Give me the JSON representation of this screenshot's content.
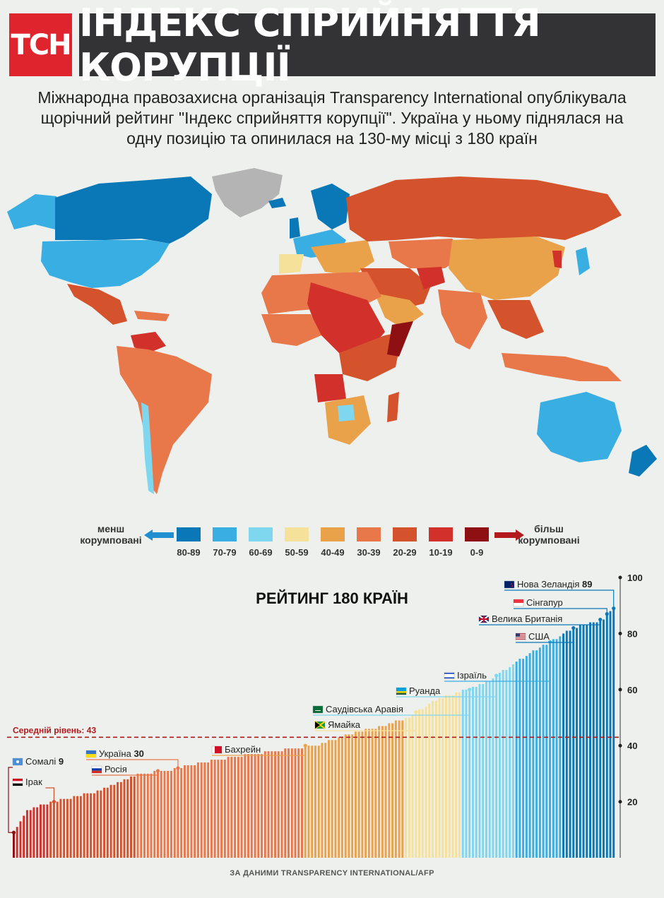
{
  "header": {
    "logo_text": "ТСН",
    "title": "ІНДЕКС СПРИЙНЯТТЯ КОРУПЦІЇ"
  },
  "subtitle_lines": [
    "Міжнародна правозахисна організація Transparency International опублікувала",
    "щорічний рейтинг  \"Індекс сприйняття корупції\". Україна у ньому піднялася на",
    "одну позицію та опинилася на 130-му місці з 180 країн"
  ],
  "legend": {
    "left_label": [
      "менш",
      "корумповані"
    ],
    "right_label": [
      "більш",
      "корумповані"
    ],
    "ranges": [
      {
        "label": "80-89",
        "color": "#0a78b6"
      },
      {
        "label": "70-79",
        "color": "#39aee2"
      },
      {
        "label": "60-69",
        "color": "#7fd6ef"
      },
      {
        "label": "50-59",
        "color": "#f6e19a"
      },
      {
        "label": "40-49",
        "color": "#eaa24a"
      },
      {
        "label": "30-39",
        "color": "#e8774a"
      },
      {
        "label": "20-29",
        "color": "#d4532d"
      },
      {
        "label": "10-19",
        "color": "#d2302a"
      },
      {
        "label": "0-9",
        "color": "#8e1013"
      }
    ]
  },
  "chart_data": {
    "type": "bar",
    "title": "РЕЙТИНГ 180 КРАЇН",
    "ylim": [
      0,
      100
    ],
    "yticks": [
      20,
      40,
      60,
      80,
      100
    ],
    "n_countries": 180,
    "average": {
      "label": "Середній рівень: 43",
      "value": 43
    },
    "breakpoints": [
      {
        "start": 0,
        "value": 9
      },
      {
        "start": 4,
        "value": 17
      },
      {
        "start": 12,
        "value": 20
      },
      {
        "start": 26,
        "value": 24
      },
      {
        "start": 33,
        "value": 28
      },
      {
        "start": 38,
        "value": 30
      },
      {
        "start": 46,
        "value": 31
      },
      {
        "start": 56,
        "value": 34
      },
      {
        "start": 66,
        "value": 36
      },
      {
        "start": 77,
        "value": 38
      },
      {
        "start": 90,
        "value": 40
      },
      {
        "start": 100,
        "value": 44
      },
      {
        "start": 110,
        "value": 47
      },
      {
        "start": 118,
        "value": 50
      },
      {
        "start": 125,
        "value": 56
      },
      {
        "start": 135,
        "value": 60
      },
      {
        "start": 142,
        "value": 63
      },
      {
        "start": 150,
        "value": 70
      },
      {
        "start": 160,
        "value": 77
      },
      {
        "start": 167,
        "value": 82
      },
      {
        "start": 176,
        "value": 85
      },
      {
        "start": 178,
        "value": 88
      },
      {
        "start": 179,
        "value": 89
      }
    ],
    "color_bands": [
      {
        "min": 0,
        "max": 9,
        "color": "#8e1013"
      },
      {
        "min": 10,
        "max": 19,
        "color": "#d2302a"
      },
      {
        "min": 20,
        "max": 29,
        "color": "#d4532d"
      },
      {
        "min": 30,
        "max": 39,
        "color": "#e8774a"
      },
      {
        "min": 40,
        "max": 49,
        "color": "#eaa24a"
      },
      {
        "min": 50,
        "max": 59,
        "color": "#f6e19a"
      },
      {
        "min": 60,
        "max": 69,
        "color": "#7fd6ef"
      },
      {
        "min": 70,
        "max": 79,
        "color": "#39aee2"
      },
      {
        "min": 80,
        "max": 89,
        "color": "#0a78b6"
      }
    ],
    "annotations": [
      {
        "name": "Сомалі",
        "score": "9",
        "index": 0,
        "flag": "somalia"
      },
      {
        "name": "Ірак",
        "score": "",
        "index": 12,
        "flag": "iraq"
      },
      {
        "name": "Україна",
        "score": "30",
        "index": 50,
        "flag": "ukraine"
      },
      {
        "name": "Росія",
        "score": "",
        "index": 44,
        "flag": "russia"
      },
      {
        "name": "Бахрейн",
        "score": "",
        "index": 88,
        "flag": "bahrain"
      },
      {
        "name": "Ямайка",
        "score": "",
        "index": 120,
        "flag": "jamaica"
      },
      {
        "name": "Саудівська Аравія",
        "score": "",
        "index": 137,
        "flag": "saudi"
      },
      {
        "name": "Руанда",
        "score": "",
        "index": 145,
        "flag": "rwanda"
      },
      {
        "name": "Ізраїль",
        "score": "",
        "index": 162,
        "flag": "israel"
      },
      {
        "name": "США",
        "score": "",
        "index": 176,
        "flag": "usa"
      },
      {
        "name": "Велика Британія",
        "score": "",
        "index": 183,
        "flag": "uk"
      },
      {
        "name": "Сінгапур",
        "score": "",
        "index": 186,
        "flag": "singapore"
      },
      {
        "name": "Нова Зеландія",
        "score": "89",
        "index": 189,
        "flag": "nz"
      }
    ]
  },
  "footer": "ЗА ДАНИМИ TRANSPARENCY INTERNATIONAL/AFP"
}
